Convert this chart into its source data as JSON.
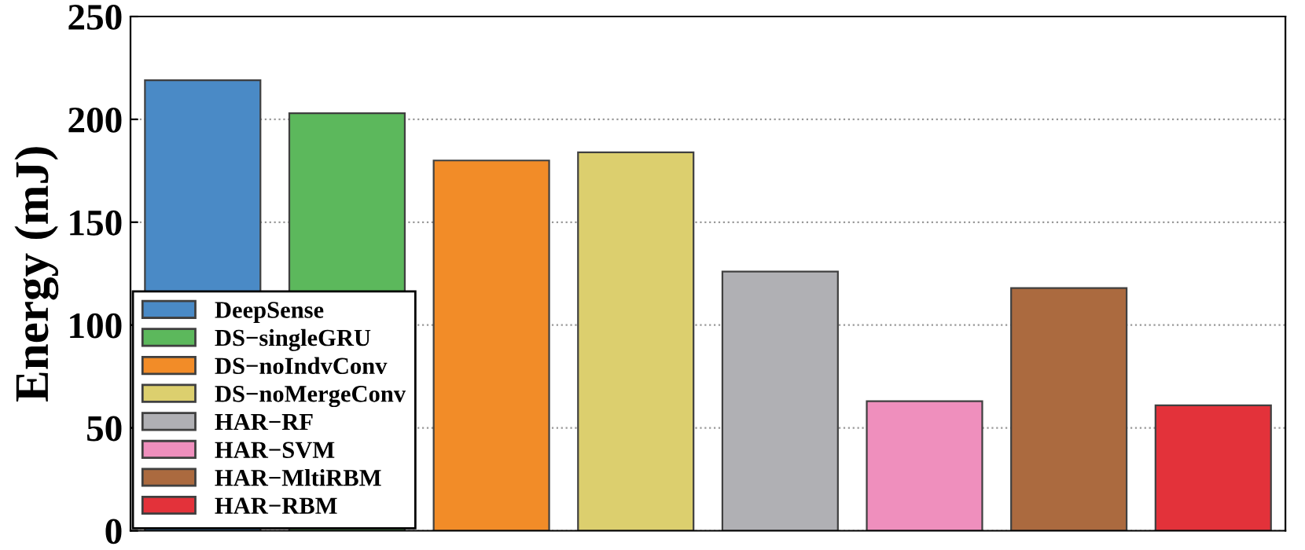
{
  "chart_data": {
    "type": "bar",
    "ylabel": "Energy (mJ)",
    "categories": [
      null,
      null,
      null,
      null,
      null,
      null,
      null,
      null
    ],
    "series": [
      {
        "name": "DeepSense",
        "color": "#4a8ac6",
        "values": [
          219,
          null,
          null,
          null,
          null,
          null,
          null,
          null
        ]
      },
      {
        "name": "DS−singleGRU",
        "color": "#5cb85c",
        "values": [
          null,
          203,
          null,
          null,
          null,
          null,
          null,
          null
        ]
      },
      {
        "name": "DS−noIndvConv",
        "color": "#f28c28",
        "values": [
          null,
          null,
          180,
          null,
          null,
          null,
          null,
          null
        ]
      },
      {
        "name": "DS−noMergeConv",
        "color": "#dccf6e",
        "values": [
          null,
          null,
          null,
          184,
          null,
          null,
          null,
          null
        ]
      },
      {
        "name": "HAR−RF",
        "color": "#b0b0b4",
        "values": [
          null,
          null,
          null,
          null,
          126,
          null,
          null,
          null
        ]
      },
      {
        "name": "HAR−SVM",
        "color": "#ef8fbd",
        "values": [
          null,
          null,
          null,
          null,
          null,
          63,
          null,
          null
        ]
      },
      {
        "name": "HAR−MltiRBM",
        "color": "#ab6a3f",
        "values": [
          null,
          null,
          null,
          null,
          null,
          null,
          118,
          null
        ]
      },
      {
        "name": "HAR−RBM",
        "color": "#e3323a",
        "values": [
          null,
          null,
          null,
          null,
          null,
          null,
          null,
          61
        ]
      }
    ],
    "ylim": [
      0,
      250
    ],
    "yticks": [
      0,
      50,
      100,
      150,
      200,
      250
    ],
    "grid": "y",
    "legend": "bottom left"
  }
}
